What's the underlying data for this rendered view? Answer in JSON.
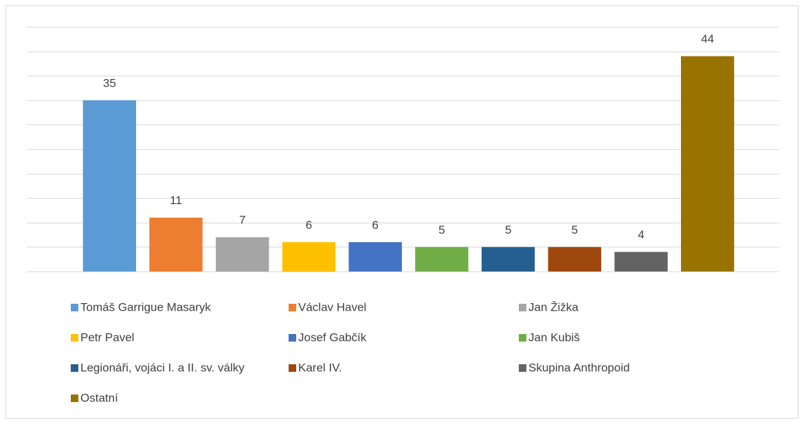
{
  "chart_data": {
    "type": "bar",
    "categories": [
      "Tomáš Garrigue Masaryk",
      "Václav Havel",
      "Jan Žižka",
      "Petr Pavel",
      "Josef Gabčík",
      "Jan Kubiš",
      "Legionáři, vojáci I. a II. sv. války",
      "Karel IV.",
      "Skupina Anthropoid",
      "Ostatní"
    ],
    "values": [
      35,
      11,
      7,
      6,
      6,
      5,
      5,
      5,
      4,
      44
    ],
    "colors": [
      "#5b9bd5",
      "#ed7d31",
      "#a5a5a5",
      "#ffc000",
      "#4472c4",
      "#70ad47",
      "#255e91",
      "#9e480e",
      "#636363",
      "#997300"
    ],
    "ylim": [
      0,
      50
    ],
    "yticks": [
      0,
      5,
      10,
      15,
      20,
      25,
      30,
      35,
      40,
      45,
      50
    ],
    "grid": true,
    "legend": "bottom"
  }
}
